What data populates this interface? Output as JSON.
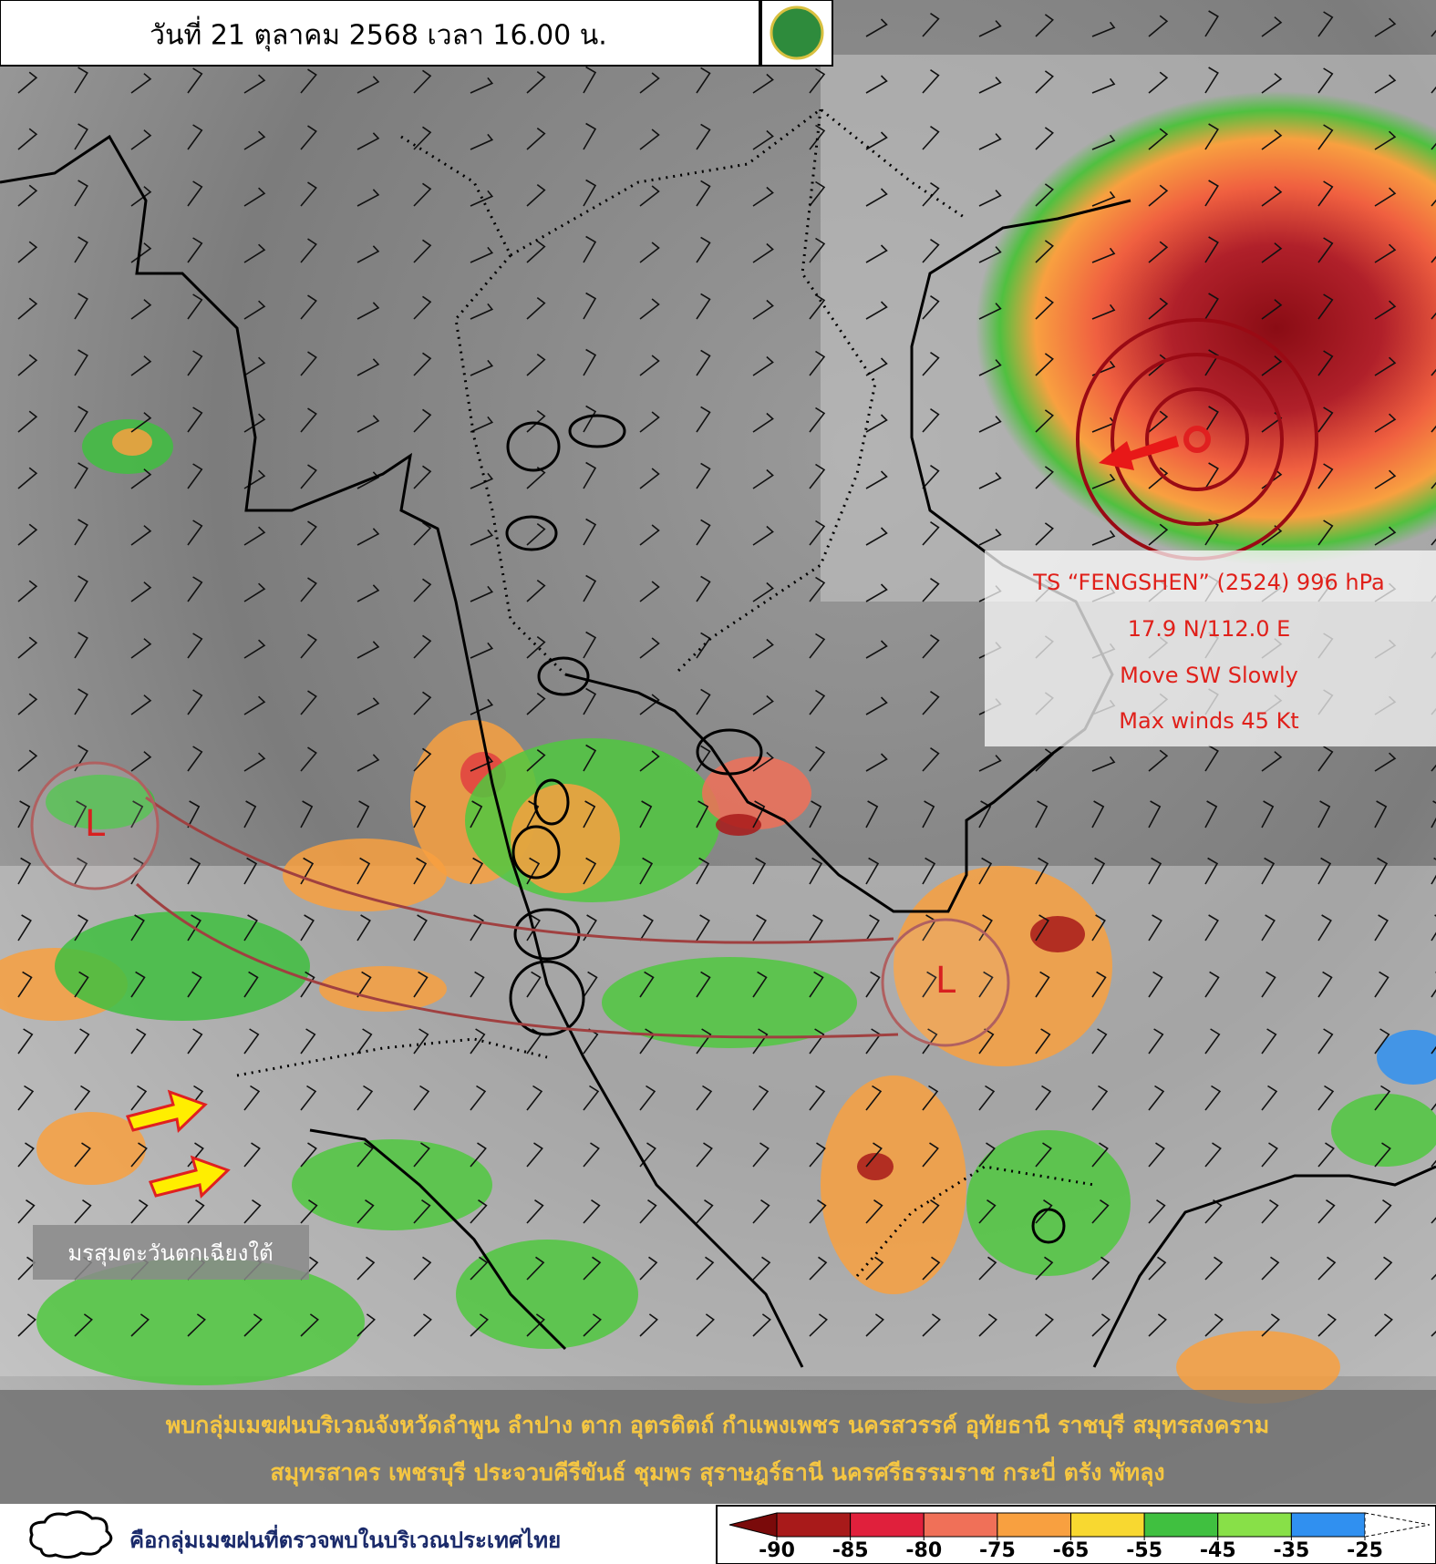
{
  "header": {
    "title": "วันที่ 21 ตุลาคม 2568 เวลา 16.00 น."
  },
  "storm": {
    "lines": [
      "TS “FENGSHEN” (2524) 996 hPa",
      "17.9 N/112.0 E",
      "Move SW Slowly",
      "Max winds 45 Kt"
    ]
  },
  "lows": [
    {
      "label": "L"
    },
    {
      "label": "L"
    }
  ],
  "monsoon": {
    "label": "มรสุมตะวันตกเฉียงใต้"
  },
  "summary": {
    "lines": [
      "พบกลุ่มเมฆฝนบริเวณจังหวัดลำพูน ลำปาง ตาก อุตรดิตถ์ กำแพงเพชร นครสวรรค์ อุทัยธานี ราชบุรี สมุทรสงคราม",
      "สมุทรสาคร เพชรบุรี ประจวบคีรีขันธ์ ชุมพร สุราษฎร์ธานี นครศรีธรรมราช กระบี่ ตรัง พัทลุง"
    ]
  },
  "legend": {
    "cloud_label": "คือกลุ่มเมฆฝนที่ตรวจพบในบริเวณประเทศไทย"
  },
  "scale": {
    "ticks": [
      -90,
      -85,
      -80,
      -75,
      -65,
      -55,
      -45,
      -35,
      -25
    ],
    "colors": [
      "#7a0a0a",
      "#a81a1a",
      "#e0203c",
      "#f07058",
      "#f8a040",
      "#f8d830",
      "#40c040",
      "#88e048",
      "#3090f0",
      "#ffffff"
    ]
  }
}
